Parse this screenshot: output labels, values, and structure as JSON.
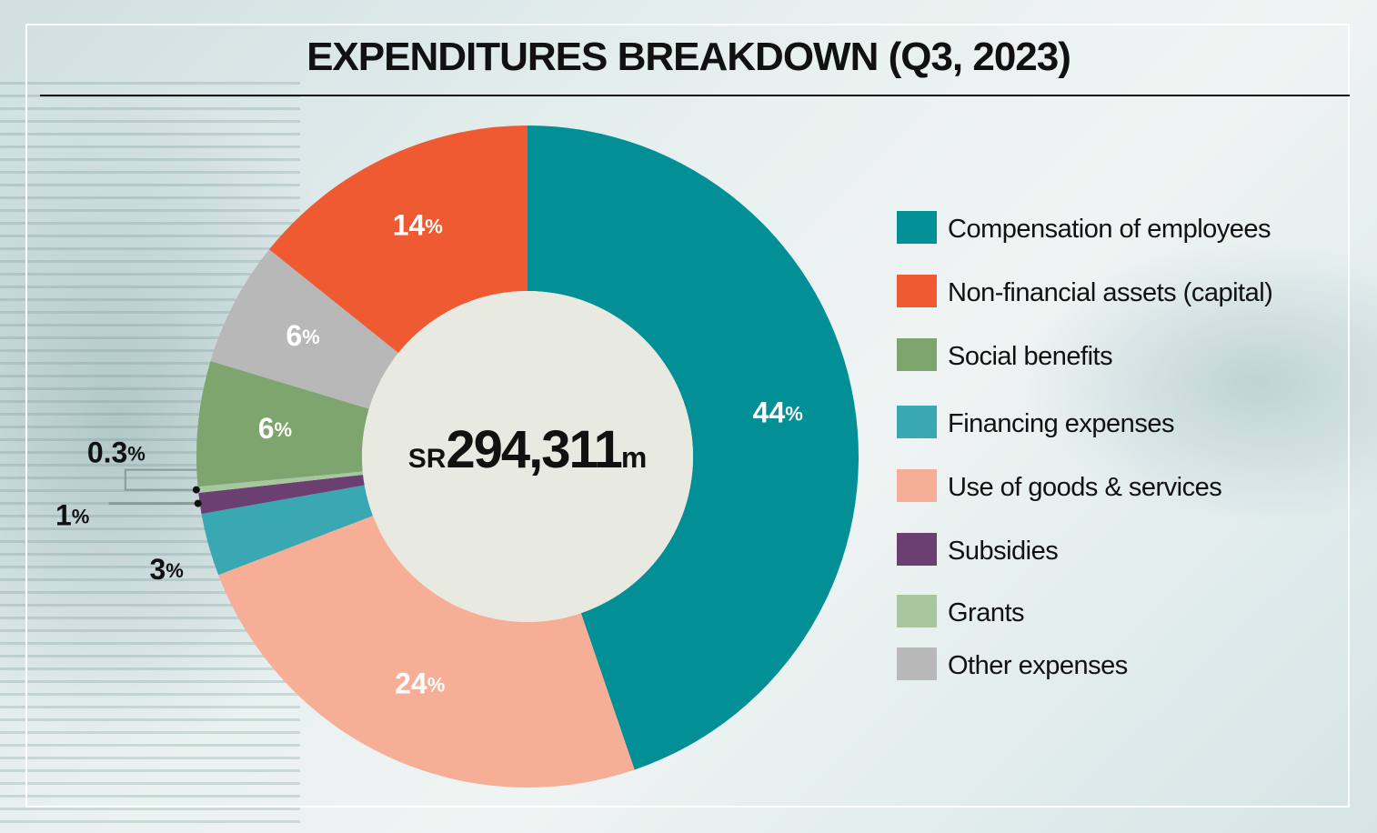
{
  "title": "EXPENDITURES BREAKDOWN (Q3, 2023)",
  "center_label": {
    "prefix": "SR",
    "value": "294,311",
    "suffix": "m"
  },
  "chart_data": {
    "type": "pie",
    "title": "EXPENDITURES BREAKDOWN (Q3, 2023)",
    "total": "SR294,311m",
    "unit": "%",
    "slices": [
      {
        "name": "Compensation of employees",
        "value": 44,
        "label": "44",
        "color": "#038f96"
      },
      {
        "name": "Use of goods & services",
        "value": 24,
        "label": "24",
        "color": "#f6ae96"
      },
      {
        "name": "Financing expenses",
        "value": 3,
        "label": "3",
        "color": "#3aa8b2"
      },
      {
        "name": "Subsidies",
        "value": 1,
        "label": "1",
        "color": "#6b3f72"
      },
      {
        "name": "Grants",
        "value": 0.3,
        "label": "0.3",
        "color": "#a7c89f"
      },
      {
        "name": "Social benefits",
        "value": 6,
        "label": "6",
        "color": "#7da56d"
      },
      {
        "name": "Other expenses",
        "value": 6,
        "label": "6",
        "color": "#b8b8b8"
      },
      {
        "name": "Non-financial assets (capital)",
        "value": 14,
        "label": "14",
        "color": "#f05a33"
      }
    ],
    "legend_order": [
      "Compensation of employees",
      "Non-financial assets (capital)",
      "Social benefits",
      "Financing expenses",
      "Use of goods & services",
      "Subsidies",
      "Grants",
      "Other expenses"
    ],
    "legend_position": "right"
  }
}
